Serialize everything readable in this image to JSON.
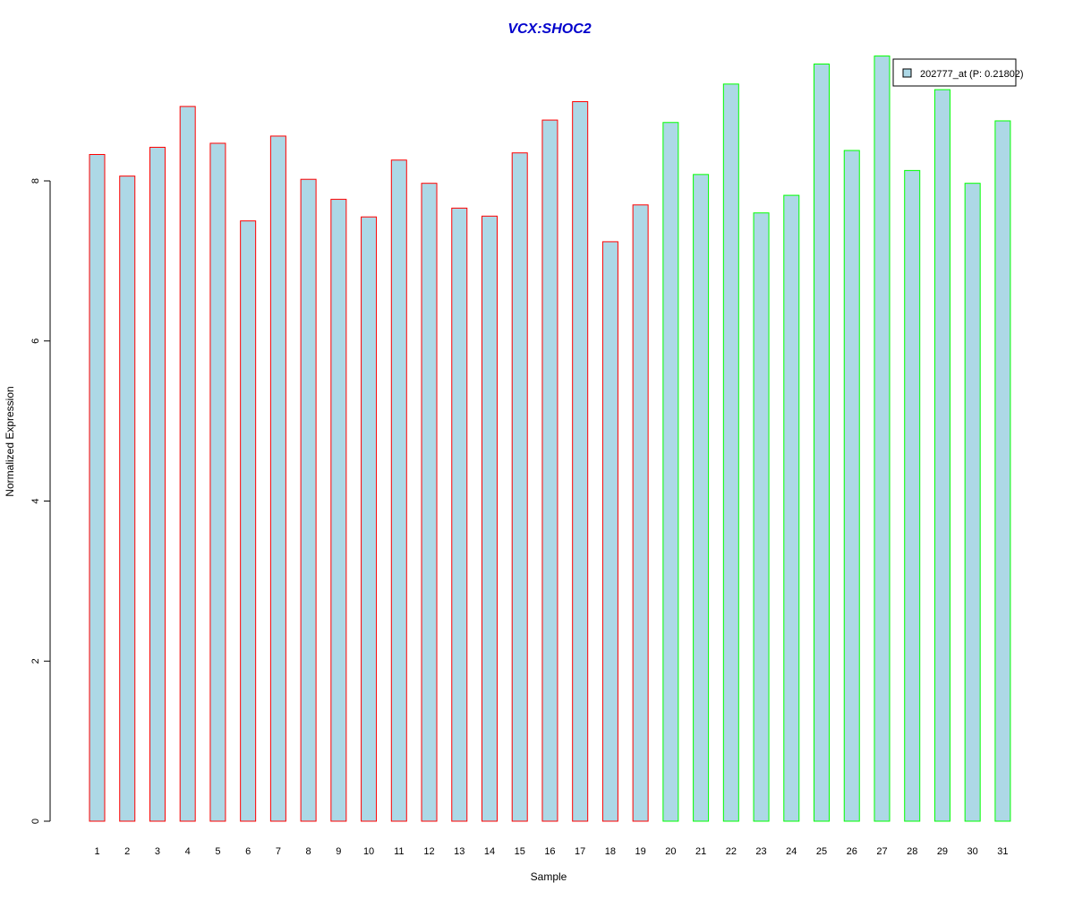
{
  "chart_data": {
    "type": "bar",
    "title": "VCX:SHOC2",
    "xlabel": "Sample",
    "ylabel": "Normalized Expression",
    "ylim": [
      0,
      9.6
    ],
    "yticks": [
      0,
      2,
      4,
      6,
      8
    ],
    "categories": [
      "1",
      "2",
      "3",
      "4",
      "5",
      "6",
      "7",
      "8",
      "9",
      "10",
      "11",
      "12",
      "13",
      "14",
      "15",
      "16",
      "17",
      "18",
      "19",
      "20",
      "21",
      "22",
      "23",
      "24",
      "25",
      "26",
      "27",
      "28",
      "29",
      "30",
      "31"
    ],
    "series": [
      {
        "name": "202777_at (P: 0.21802)",
        "values": [
          8.33,
          8.06,
          8.42,
          8.93,
          8.47,
          7.5,
          8.56,
          8.02,
          7.77,
          7.55,
          8.26,
          7.97,
          7.66,
          7.56,
          8.35,
          8.76,
          8.99,
          7.24,
          7.7,
          8.73,
          8.08,
          9.21,
          7.6,
          7.82,
          9.46,
          8.38,
          9.56,
          8.13,
          9.14,
          7.97,
          8.75
        ]
      }
    ],
    "bar_fill": "#add8e6",
    "group_border_colors": {
      "group1": "#ff0000",
      "group2": "#00ff00"
    },
    "group_assignment": [
      1,
      1,
      1,
      1,
      1,
      1,
      1,
      1,
      1,
      1,
      1,
      1,
      1,
      1,
      1,
      1,
      1,
      1,
      1,
      2,
      2,
      2,
      2,
      2,
      2,
      2,
      2,
      2,
      2,
      2,
      2
    ],
    "title_color": "#0000cc",
    "legend": {
      "label": "202777_at (P: 0.21802)",
      "position": "top-right"
    },
    "grid": false
  }
}
